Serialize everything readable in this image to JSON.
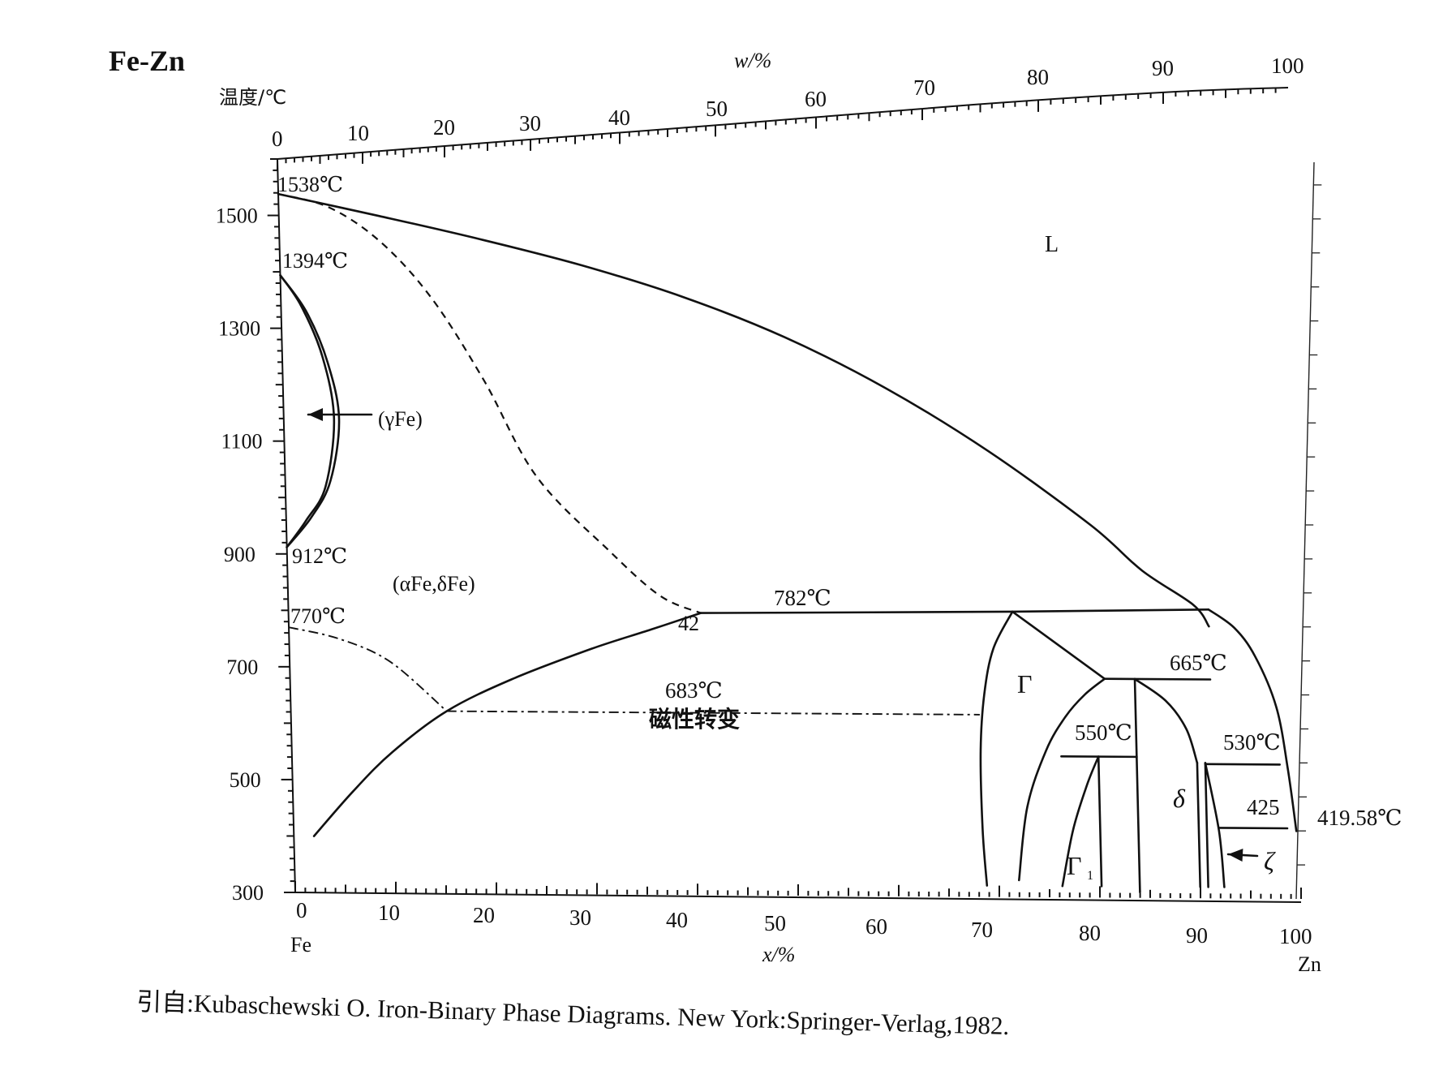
{
  "system": "Fe-Zn",
  "citation": "引自:Kubaschewski O.  Iron-Binary Phase Diagrams. New York:Springer-Verlag,1982.",
  "chart_data": {
    "type": "line",
    "title": "Fe-Zn",
    "ylabel": "温度/℃",
    "xlabel": "x/%",
    "top_axis_label": "w/%",
    "ylim": [
      300,
      1600
    ],
    "xlim": [
      0,
      100
    ],
    "y_ticks": [
      "1500",
      "1300",
      "1100",
      "900",
      "700",
      "500",
      "300"
    ],
    "x_ticks": [
      "0",
      "10",
      "20",
      "30",
      "40",
      "50",
      "60",
      "70",
      "80",
      "90",
      "100"
    ],
    "top_ticks": [
      "0",
      "10",
      "20",
      "30",
      "40",
      "50",
      "60",
      "70",
      "80",
      "90",
      "100"
    ],
    "left_element": "Fe",
    "right_element": "Zn",
    "phase_labels": {
      "liquid": "L",
      "gamma_fe": "(γFe)",
      "alpha_delta_fe": "(αFe,δFe)",
      "gamma": "Γ",
      "gamma1": "Γ",
      "gamma1_subscript": "1",
      "delta": "δ",
      "zeta": "ζ"
    },
    "annotations": {
      "fe_melting": "1538℃",
      "gamma_top": "1394℃",
      "gamma_bottom": "912℃",
      "curie": "770℃",
      "peritectic_782": "782℃",
      "composition_42": "42",
      "magnetic_683": "683℃",
      "magnetic_text": "磁性转变",
      "peritectic_665": "665℃",
      "peritectic_550": "550℃",
      "peritectic_530": "530℃",
      "eutectic_425": "425",
      "zn_melting": "419.58℃"
    },
    "series": [
      {
        "style": "solid",
        "points": [
          [
            0,
            1538
          ],
          [
            10,
            1500
          ],
          [
            20,
            1460
          ],
          [
            30,
            1415
          ],
          [
            40,
            1360
          ],
          [
            50,
            1290
          ],
          [
            60,
            1200
          ],
          [
            70,
            1090
          ],
          [
            80,
            960
          ],
          [
            85,
            880
          ],
          [
            90,
            820
          ],
          [
            91.5,
            782
          ]
        ]
      },
      {
        "style": "dashed",
        "points": [
          [
            0,
            1538
          ],
          [
            5,
            1515
          ],
          [
            10,
            1455
          ],
          [
            15,
            1355
          ],
          [
            20,
            1210
          ],
          [
            25,
            1040
          ],
          [
            32,
            910
          ],
          [
            37,
            830
          ],
          [
            41,
            800
          ]
        ]
      },
      {
        "style": "solid",
        "points": [
          [
            0,
            1394
          ],
          [
            2,
            1340
          ],
          [
            4,
            1250
          ],
          [
            5,
            1140
          ],
          [
            4,
            1020
          ],
          [
            2,
            960
          ],
          [
            0,
            912
          ]
        ]
      },
      {
        "style": "solid",
        "points": [
          [
            0,
            1394
          ],
          [
            2.5,
            1330
          ],
          [
            4.5,
            1240
          ],
          [
            5.5,
            1140
          ],
          [
            4.5,
            1030
          ],
          [
            2.5,
            965
          ],
          [
            0,
            912
          ]
        ]
      },
      {
        "style": "solid",
        "points": [
          [
            2,
            400
          ],
          [
            6,
            480
          ],
          [
            10,
            550
          ],
          [
            15.5,
            623
          ],
          [
            22,
            680
          ],
          [
            30,
            735
          ],
          [
            36,
            770
          ],
          [
            41,
            800
          ]
        ]
      },
      {
        "style": "dashdot",
        "points": [
          [
            0,
            770
          ],
          [
            5,
            750
          ],
          [
            10,
            710
          ],
          [
            15.5,
            623
          ]
        ]
      },
      {
        "style": "solid",
        "points": [
          [
            41,
            800
          ],
          [
            72,
            806
          ],
          [
            91.5,
            812
          ]
        ]
      },
      {
        "style": "dashdot",
        "points": [
          [
            15.5,
            623
          ],
          [
            68.5,
            623
          ]
        ]
      },
      {
        "style": "solid",
        "points": [
          [
            72,
            806
          ],
          [
            70,
            740
          ],
          [
            69,
            660
          ],
          [
            68.5,
            560
          ],
          [
            68.5,
            420
          ],
          [
            68.8,
            320
          ]
        ]
      },
      {
        "style": "solid",
        "points": [
          [
            72,
            806
          ],
          [
            81,
            688
          ]
        ]
      },
      {
        "style": "solid",
        "points": [
          [
            81,
            688
          ],
          [
            91.5,
            688
          ]
        ]
      },
      {
        "style": "solid",
        "points": [
          [
            81,
            688
          ],
          [
            79,
            660
          ],
          [
            77,
            620
          ],
          [
            75,
            560
          ],
          [
            73,
            460
          ],
          [
            72,
            330
          ]
        ]
      },
      {
        "style": "solid",
        "points": [
          [
            76.5,
            550
          ],
          [
            84,
            550
          ]
        ]
      },
      {
        "style": "solid",
        "points": [
          [
            80.2,
            550
          ],
          [
            79,
            500
          ],
          [
            77.5,
            420
          ],
          [
            76.3,
            320
          ]
        ]
      },
      {
        "style": "solid",
        "points": [
          [
            80.2,
            550
          ],
          [
            80.2,
            320
          ]
        ]
      },
      {
        "style": "solid",
        "points": [
          [
            84,
            688
          ],
          [
            84,
            310
          ]
        ]
      },
      {
        "style": "solid",
        "points": [
          [
            84,
            688
          ],
          [
            87,
            650
          ],
          [
            89,
            600
          ],
          [
            90,
            540
          ]
        ]
      },
      {
        "style": "solid",
        "points": [
          [
            90,
            540
          ],
          [
            90,
            320
          ]
        ]
      },
      {
        "style": "solid",
        "points": [
          [
            90.8,
            540
          ],
          [
            90.8,
            320
          ]
        ]
      },
      {
        "style": "solid",
        "points": [
          [
            90.8,
            540
          ],
          [
            92,
            420
          ],
          [
            92.4,
            320
          ]
        ]
      },
      {
        "style": "solid",
        "points": [
          [
            90.8,
            538
          ],
          [
            98.2,
            538
          ]
        ]
      },
      {
        "style": "solid",
        "points": [
          [
            92,
            425
          ],
          [
            98.8,
            425
          ]
        ]
      },
      {
        "style": "solid",
        "points": [
          [
            91.5,
            812
          ],
          [
            94,
            780
          ],
          [
            96,
            730
          ],
          [
            98,
            640
          ],
          [
            99,
            530
          ],
          [
            99.7,
            420
          ]
        ]
      }
    ]
  }
}
